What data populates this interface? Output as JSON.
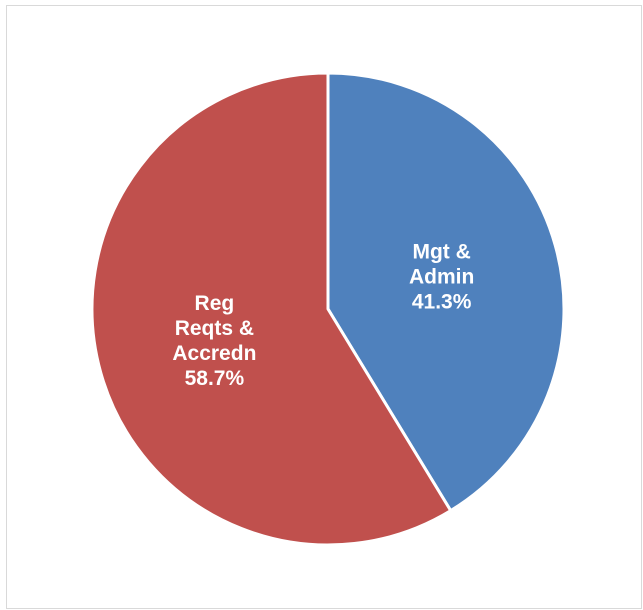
{
  "chart_data": {
    "type": "pie",
    "slices": [
      {
        "label_lines": [
          "Mgt &",
          "Admin"
        ],
        "value_label": "41.3%",
        "value": 41.3,
        "color": "#4f81bd"
      },
      {
        "label_lines": [
          "Reg",
          "Reqts &",
          "Accredn"
        ],
        "value_label": "58.7%",
        "value": 58.7,
        "color": "#c0504d"
      }
    ],
    "start_angle": "12 o'clock",
    "direction": "clockwise",
    "legend": "none",
    "slice_border_color": "#ffffff"
  }
}
